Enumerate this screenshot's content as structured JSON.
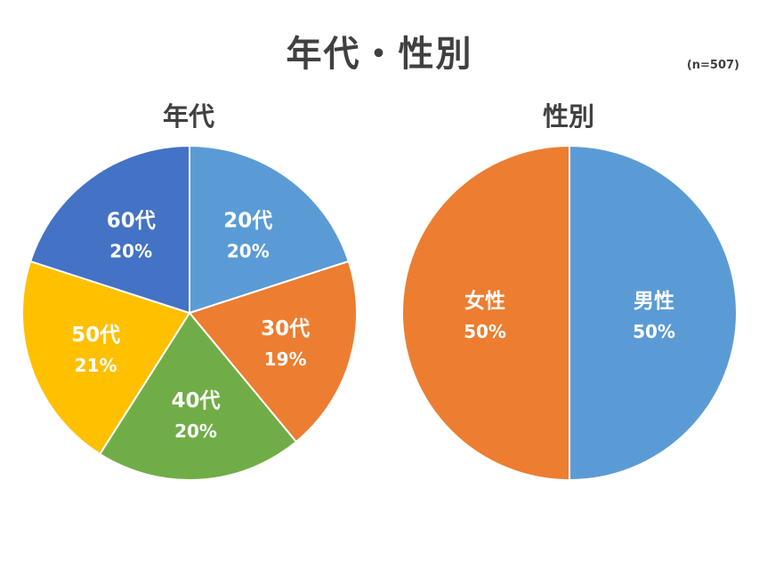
{
  "title": "年代・性別",
  "sample_note": "(n=507)",
  "chart_data": [
    {
      "type": "pie",
      "title": "年代",
      "slices": [
        {
          "label": "20代",
          "value": 20,
          "value_label": "20%",
          "color": "#5B9BD5"
        },
        {
          "label": "30代",
          "value": 19,
          "value_label": "19%",
          "color": "#ED7D31"
        },
        {
          "label": "40代",
          "value": 20,
          "value_label": "20%",
          "color": "#70AD47"
        },
        {
          "label": "50代",
          "value": 21,
          "value_label": "21%",
          "color": "#FFC000"
        },
        {
          "label": "60代",
          "value": 20,
          "value_label": "20%",
          "color": "#4472C4"
        }
      ]
    },
    {
      "type": "pie",
      "title": "性別",
      "slices": [
        {
          "label": "男性",
          "value": 50,
          "value_label": "50%",
          "color": "#5B9BD5"
        },
        {
          "label": "女性",
          "value": 50,
          "value_label": "50%",
          "color": "#ED7D31"
        }
      ]
    }
  ]
}
